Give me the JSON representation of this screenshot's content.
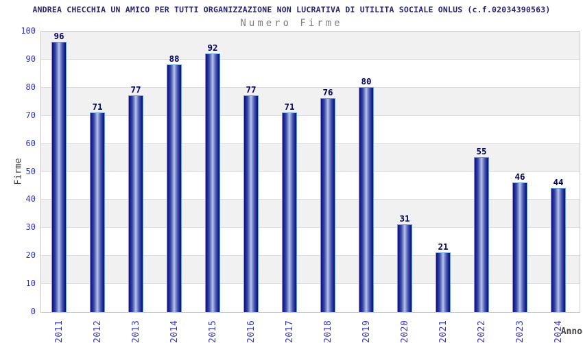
{
  "header": {
    "title": "ANDREA CHECCHIA UN AMICO PER TUTTI ORGANIZZAZIONE NON LUCRATIVA DI UTILITA SOCIALE ONLUS (c.f.02034390563)",
    "subtitle": "Numero Firme"
  },
  "chart_data": {
    "type": "bar",
    "title": "Numero Firme",
    "categories": [
      "2011",
      "2012",
      "2013",
      "2014",
      "2015",
      "2016",
      "2017",
      "2018",
      "2019",
      "2020",
      "2021",
      "2022",
      "2023",
      "2024"
    ],
    "values": [
      96,
      71,
      77,
      88,
      92,
      77,
      71,
      76,
      80,
      31,
      21,
      55,
      46,
      44
    ],
    "xlabel": "Anno",
    "ylabel": "Firme",
    "ylim": [
      0,
      100
    ],
    "ytick_step": 10,
    "yticks": [
      0,
      10,
      20,
      30,
      40,
      50,
      60,
      70,
      80,
      90,
      100
    ],
    "grid": "alternating-horizontal-bands",
    "legend": "none",
    "colors": {
      "title_text": "#252575",
      "subtitle_text": "#7e7e7e",
      "axis_tick_text": "#3333cc",
      "value_label_text": "#000066",
      "axis_title_text": "#454545",
      "bar_edge_dark": "#10107a",
      "bar_center_light": "#b9c3ec",
      "bar_outline": "#64a0e0",
      "band_shaded": "#f1f1f1",
      "band_plain": "#ffffff",
      "gridline": "#dcdcdc",
      "plot_border": "#c9c9c9"
    }
  }
}
